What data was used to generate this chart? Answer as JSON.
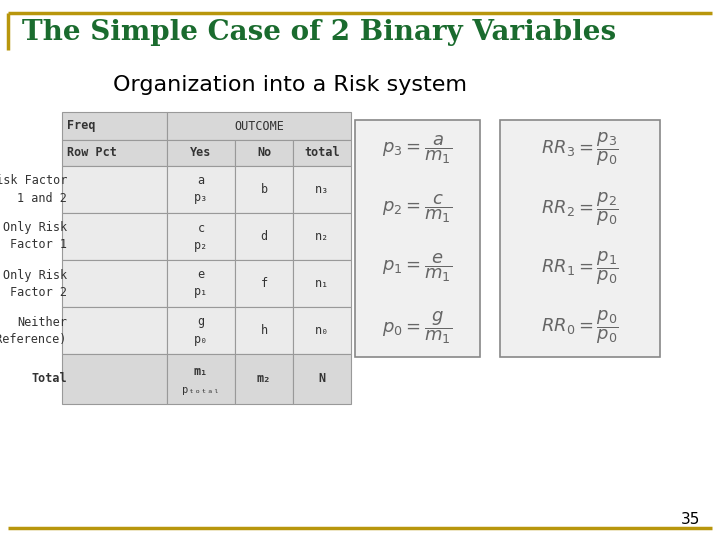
{
  "title": "The Simple Case of 2 Binary Variables",
  "subtitle": "Organization into a Risk system",
  "title_color": "#1a6b2e",
  "title_fontsize": 20,
  "subtitle_fontsize": 16,
  "bg_color": "#ffffff",
  "border_color": "#b8960c",
  "page_number": "35",
  "table_header_bg": "#d8d8d8",
  "table_cell_bg": "#ebebeb",
  "table_border_color": "#999999",
  "formula_box_bg": "#f0f0f0",
  "formula_border_color": "#888888",
  "formula_color": "#666666"
}
